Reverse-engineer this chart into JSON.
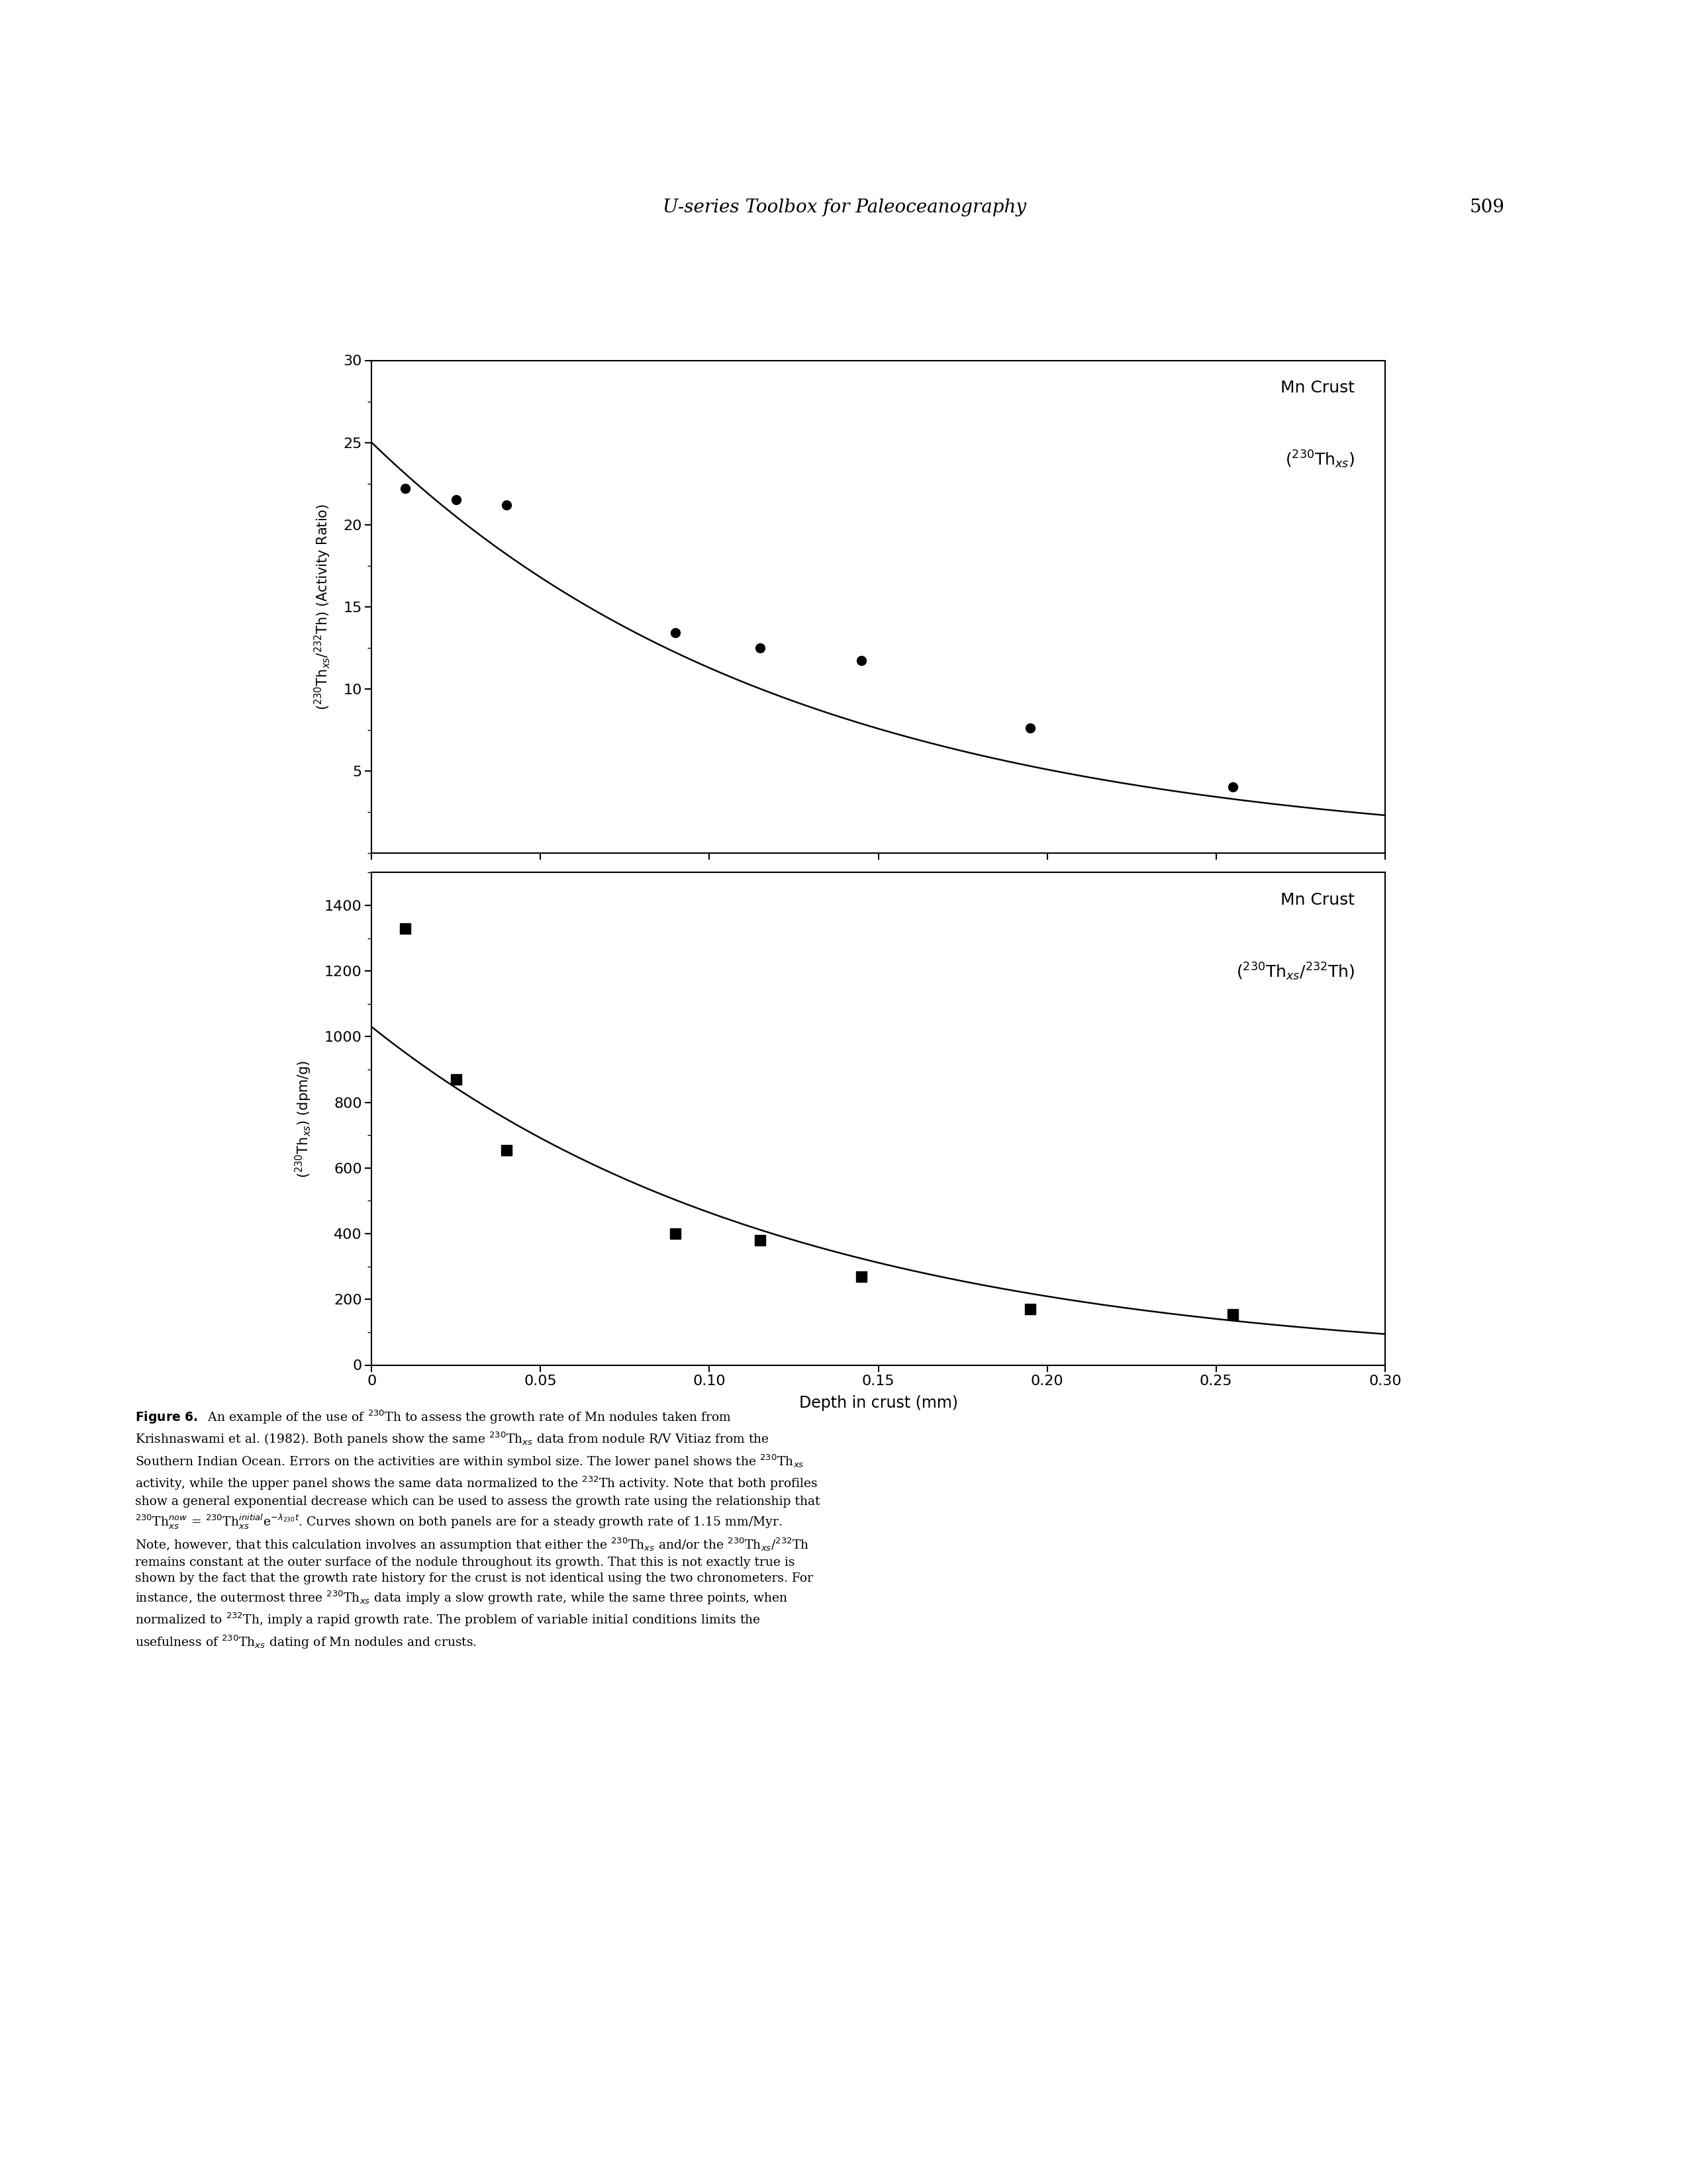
{
  "title_text": "U-series Toolbox for Paleoceanography",
  "page_number": "509",
  "upper_panel": {
    "yticks": [
      5,
      10,
      15,
      20,
      25,
      30
    ],
    "ylim": [
      0,
      30
    ],
    "data_x": [
      0.01,
      0.025,
      0.04,
      0.09,
      0.115,
      0.145,
      0.195,
      0.255
    ],
    "data_y": [
      22.2,
      21.5,
      21.2,
      13.4,
      12.5,
      11.7,
      7.6,
      4.0
    ],
    "curve_A0": 25.0,
    "lambda_per_mm": 7.97
  },
  "lower_panel": {
    "yticks": [
      0,
      200,
      400,
      600,
      800,
      1000,
      1200,
      1400
    ],
    "ylim": [
      0,
      1500
    ],
    "data_x": [
      0.01,
      0.025,
      0.04,
      0.09,
      0.115,
      0.145,
      0.195,
      0.255
    ],
    "data_y": [
      1330,
      870,
      655,
      400,
      380,
      270,
      170,
      155
    ],
    "curve_A0": 1030.0,
    "lambda_per_mm": 7.97
  },
  "xlabel": "Depth in crust (mm)",
  "xtick_labels": [
    "0",
    "0.05",
    "0.10",
    "0.15",
    "0.20",
    "0.25",
    "0.30"
  ],
  "xticks": [
    0,
    0.05,
    0.1,
    0.15,
    0.2,
    0.25,
    0.3
  ],
  "xlim": [
    0,
    0.3
  ],
  "background_color": "#ffffff"
}
